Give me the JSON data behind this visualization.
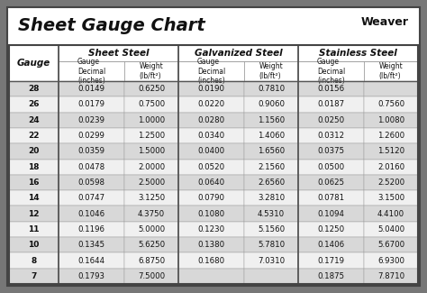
{
  "title": "Sheet Gauge Chart",
  "background_outer": "#777777",
  "background_inner": "#ffffff",
  "row_bg_odd": "#d8d8d8",
  "row_bg_even": "#f0f0f0",
  "header_bg": "#ffffff",
  "gauges": [
    28,
    26,
    24,
    22,
    20,
    18,
    16,
    14,
    12,
    11,
    10,
    8,
    7
  ],
  "sheet_steel": [
    [
      "0.0149",
      "0.6250"
    ],
    [
      "0.0179",
      "0.7500"
    ],
    [
      "0.0239",
      "1.0000"
    ],
    [
      "0.0299",
      "1.2500"
    ],
    [
      "0.0359",
      "1.5000"
    ],
    [
      "0.0478",
      "2.0000"
    ],
    [
      "0.0598",
      "2.5000"
    ],
    [
      "0.0747",
      "3.1250"
    ],
    [
      "0.1046",
      "4.3750"
    ],
    [
      "0.1196",
      "5.0000"
    ],
    [
      "0.1345",
      "5.6250"
    ],
    [
      "0.1644",
      "6.8750"
    ],
    [
      "0.1793",
      "7.5000"
    ]
  ],
  "galvanized_steel": [
    [
      "0.0190",
      "0.7810"
    ],
    [
      "0.0220",
      "0.9060"
    ],
    [
      "0.0280",
      "1.1560"
    ],
    [
      "0.0340",
      "1.4060"
    ],
    [
      "0.0400",
      "1.6560"
    ],
    [
      "0.0520",
      "2.1560"
    ],
    [
      "0.0640",
      "2.6560"
    ],
    [
      "0.0790",
      "3.2810"
    ],
    [
      "0.1080",
      "4.5310"
    ],
    [
      "0.1230",
      "5.1560"
    ],
    [
      "0.1380",
      "5.7810"
    ],
    [
      "0.1680",
      "7.0310"
    ],
    [
      "",
      ""
    ]
  ],
  "stainless_steel": [
    [
      "0.0156",
      ""
    ],
    [
      "0.0187",
      "0.7560"
    ],
    [
      "0.0250",
      "1.0080"
    ],
    [
      "0.0312",
      "1.2600"
    ],
    [
      "0.0375",
      "1.5120"
    ],
    [
      "0.0500",
      "2.0160"
    ],
    [
      "0.0625",
      "2.5200"
    ],
    [
      "0.0781",
      "3.1500"
    ],
    [
      "0.1094",
      "4.4100"
    ],
    [
      "0.1250",
      "5.0400"
    ],
    [
      "0.1406",
      "5.6700"
    ],
    [
      "0.1719",
      "6.9300"
    ],
    [
      "0.1875",
      "7.8710"
    ]
  ],
  "border_color": "#444444",
  "divider_color": "#555555",
  "text_color": "#111111",
  "title_fontsize": 14,
  "header_fontsize": 7.5,
  "subheader_fontsize": 5.5,
  "data_fontsize": 6.2,
  "gauge_fontsize": 6.5
}
